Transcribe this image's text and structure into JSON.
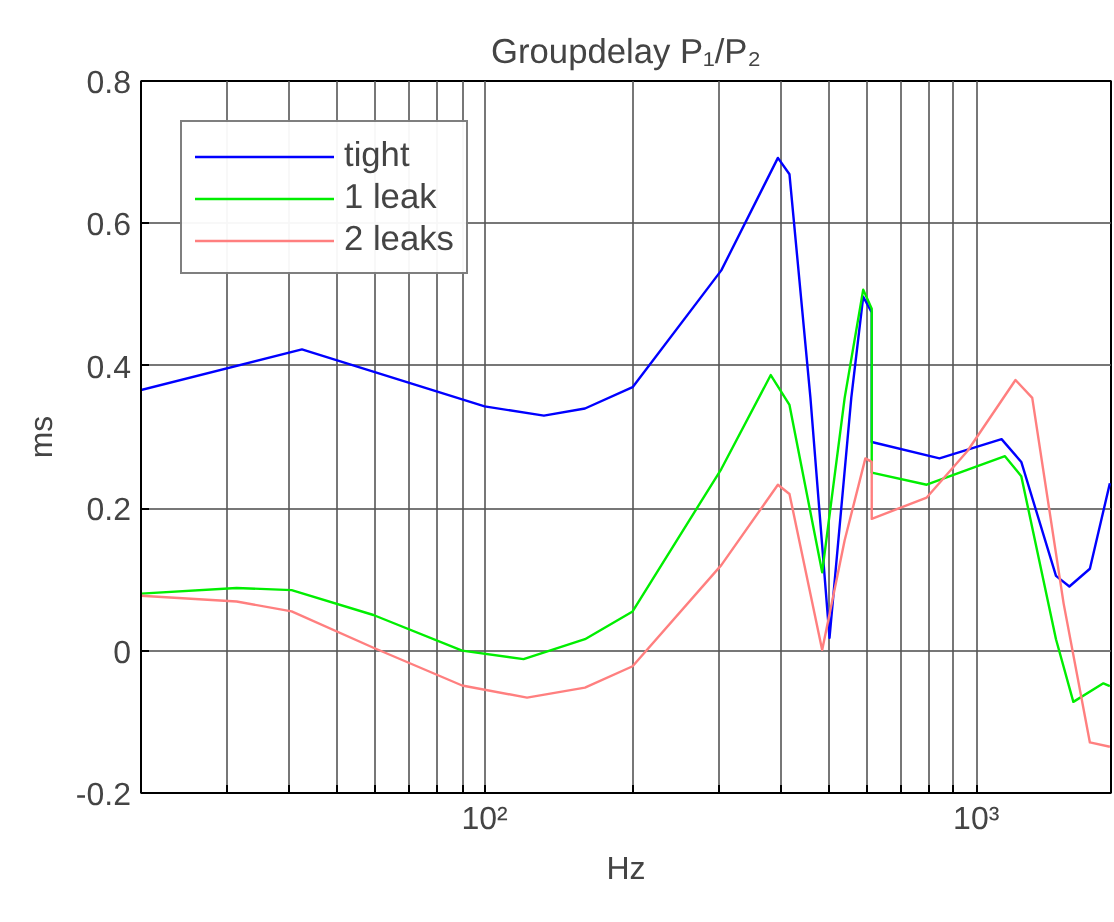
{
  "chart_data": {
    "type": "line",
    "title": "Groupdelay P₁/P₂",
    "xlabel": "Hz",
    "ylabel": "ms",
    "log": "x",
    "grid": true,
    "legend": "top left",
    "xlim": [
      20,
      1880
    ],
    "ylim": [
      -0.2,
      0.8
    ],
    "xticks": [
      {
        "value": 20,
        "label": null
      },
      {
        "value": 30,
        "label": null
      },
      {
        "value": 40,
        "label": null
      },
      {
        "value": 50,
        "label": null
      },
      {
        "value": 60,
        "label": null
      },
      {
        "value": 70,
        "label": null
      },
      {
        "value": 80,
        "label": null
      },
      {
        "value": 90,
        "label": null
      },
      {
        "value": 100,
        "label": "10²"
      },
      {
        "value": 200,
        "label": null
      },
      {
        "value": 300,
        "label": null
      },
      {
        "value": 400,
        "label": null
      },
      {
        "value": 500,
        "label": null
      },
      {
        "value": 600,
        "label": null
      },
      {
        "value": 700,
        "label": null
      },
      {
        "value": 800,
        "label": null
      },
      {
        "value": 900,
        "label": null
      },
      {
        "value": 1000,
        "label": "10³"
      }
    ],
    "yticks": [
      -0.2,
      0,
      0.2,
      0.4,
      0.6,
      0.8
    ],
    "series": [
      {
        "name": "tight",
        "color": "#0000ff",
        "x": [
          20,
          42.5,
          100,
          132,
          160,
          200,
          303,
          395,
          417,
          460,
          503,
          557,
          589,
          613,
          613,
          842,
          1126,
          1235,
          1453,
          1547,
          1703,
          1870
        ],
        "values": [
          0.366,
          0.423,
          0.343,
          0.33,
          0.34,
          0.37,
          0.534,
          0.692,
          0.669,
          0.355,
          0.018,
          0.355,
          0.497,
          0.475,
          0.293,
          0.27,
          0.297,
          0.265,
          0.105,
          0.09,
          0.115,
          0.235
        ]
      },
      {
        "name": "1 leak",
        "color": "#00ee00",
        "x": [
          20,
          31.3,
          40.5,
          59.4,
          90,
          120,
          160,
          200,
          303,
          382,
          417,
          486,
          540,
          589,
          613,
          613,
          793,
          1144,
          1235,
          1453,
          1576,
          1814,
          1870
        ],
        "values": [
          0.08,
          0.088,
          0.085,
          0.05,
          0.0,
          -0.012,
          0.016,
          0.055,
          0.255,
          0.387,
          0.345,
          0.11,
          0.355,
          0.507,
          0.48,
          0.25,
          0.233,
          0.273,
          0.245,
          0.016,
          -0.072,
          -0.046,
          -0.05
        ]
      },
      {
        "name": "2 leaks",
        "color": "#ff7f7f",
        "x": [
          20,
          31.3,
          40.5,
          59.4,
          90,
          122,
          160,
          200,
          303,
          395,
          417,
          486,
          540,
          595,
          613,
          613,
          793,
          959,
          1202,
          1300,
          1506,
          1703,
          1870
        ],
        "values": [
          0.077,
          0.069,
          0.055,
          0.004,
          -0.049,
          -0.066,
          -0.052,
          -0.022,
          0.12,
          0.233,
          0.22,
          0.001,
          0.155,
          0.27,
          0.265,
          0.185,
          0.215,
          0.28,
          0.38,
          0.355,
          0.066,
          -0.129,
          -0.135
        ]
      }
    ]
  }
}
